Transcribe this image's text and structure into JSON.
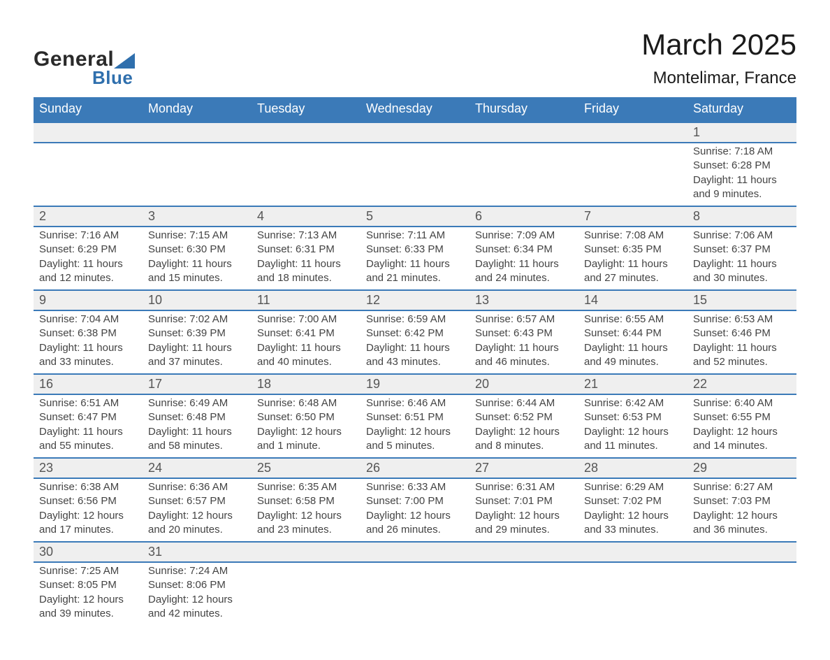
{
  "brand": {
    "word1": "General",
    "word2": "Blue",
    "accent_color": "#2f6fad"
  },
  "title": "March 2025",
  "location": "Montelimar, France",
  "header_bg": "#3b7ab8",
  "header_fg": "#ffffff",
  "daynum_bg": "#efefef",
  "row_border": "#3b7ab8",
  "text_color": "#444444",
  "day_headers": [
    "Sunday",
    "Monday",
    "Tuesday",
    "Wednesday",
    "Thursday",
    "Friday",
    "Saturday"
  ],
  "weeks": [
    [
      null,
      null,
      null,
      null,
      null,
      null,
      {
        "n": "1",
        "sunrise": "Sunrise: 7:18 AM",
        "sunset": "Sunset: 6:28 PM",
        "dl1": "Daylight: 11 hours",
        "dl2": "and 9 minutes."
      }
    ],
    [
      {
        "n": "2",
        "sunrise": "Sunrise: 7:16 AM",
        "sunset": "Sunset: 6:29 PM",
        "dl1": "Daylight: 11 hours",
        "dl2": "and 12 minutes."
      },
      {
        "n": "3",
        "sunrise": "Sunrise: 7:15 AM",
        "sunset": "Sunset: 6:30 PM",
        "dl1": "Daylight: 11 hours",
        "dl2": "and 15 minutes."
      },
      {
        "n": "4",
        "sunrise": "Sunrise: 7:13 AM",
        "sunset": "Sunset: 6:31 PM",
        "dl1": "Daylight: 11 hours",
        "dl2": "and 18 minutes."
      },
      {
        "n": "5",
        "sunrise": "Sunrise: 7:11 AM",
        "sunset": "Sunset: 6:33 PM",
        "dl1": "Daylight: 11 hours",
        "dl2": "and 21 minutes."
      },
      {
        "n": "6",
        "sunrise": "Sunrise: 7:09 AM",
        "sunset": "Sunset: 6:34 PM",
        "dl1": "Daylight: 11 hours",
        "dl2": "and 24 minutes."
      },
      {
        "n": "7",
        "sunrise": "Sunrise: 7:08 AM",
        "sunset": "Sunset: 6:35 PM",
        "dl1": "Daylight: 11 hours",
        "dl2": "and 27 minutes."
      },
      {
        "n": "8",
        "sunrise": "Sunrise: 7:06 AM",
        "sunset": "Sunset: 6:37 PM",
        "dl1": "Daylight: 11 hours",
        "dl2": "and 30 minutes."
      }
    ],
    [
      {
        "n": "9",
        "sunrise": "Sunrise: 7:04 AM",
        "sunset": "Sunset: 6:38 PM",
        "dl1": "Daylight: 11 hours",
        "dl2": "and 33 minutes."
      },
      {
        "n": "10",
        "sunrise": "Sunrise: 7:02 AM",
        "sunset": "Sunset: 6:39 PM",
        "dl1": "Daylight: 11 hours",
        "dl2": "and 37 minutes."
      },
      {
        "n": "11",
        "sunrise": "Sunrise: 7:00 AM",
        "sunset": "Sunset: 6:41 PM",
        "dl1": "Daylight: 11 hours",
        "dl2": "and 40 minutes."
      },
      {
        "n": "12",
        "sunrise": "Sunrise: 6:59 AM",
        "sunset": "Sunset: 6:42 PM",
        "dl1": "Daylight: 11 hours",
        "dl2": "and 43 minutes."
      },
      {
        "n": "13",
        "sunrise": "Sunrise: 6:57 AM",
        "sunset": "Sunset: 6:43 PM",
        "dl1": "Daylight: 11 hours",
        "dl2": "and 46 minutes."
      },
      {
        "n": "14",
        "sunrise": "Sunrise: 6:55 AM",
        "sunset": "Sunset: 6:44 PM",
        "dl1": "Daylight: 11 hours",
        "dl2": "and 49 minutes."
      },
      {
        "n": "15",
        "sunrise": "Sunrise: 6:53 AM",
        "sunset": "Sunset: 6:46 PM",
        "dl1": "Daylight: 11 hours",
        "dl2": "and 52 minutes."
      }
    ],
    [
      {
        "n": "16",
        "sunrise": "Sunrise: 6:51 AM",
        "sunset": "Sunset: 6:47 PM",
        "dl1": "Daylight: 11 hours",
        "dl2": "and 55 minutes."
      },
      {
        "n": "17",
        "sunrise": "Sunrise: 6:49 AM",
        "sunset": "Sunset: 6:48 PM",
        "dl1": "Daylight: 11 hours",
        "dl2": "and 58 minutes."
      },
      {
        "n": "18",
        "sunrise": "Sunrise: 6:48 AM",
        "sunset": "Sunset: 6:50 PM",
        "dl1": "Daylight: 12 hours",
        "dl2": "and 1 minute."
      },
      {
        "n": "19",
        "sunrise": "Sunrise: 6:46 AM",
        "sunset": "Sunset: 6:51 PM",
        "dl1": "Daylight: 12 hours",
        "dl2": "and 5 minutes."
      },
      {
        "n": "20",
        "sunrise": "Sunrise: 6:44 AM",
        "sunset": "Sunset: 6:52 PM",
        "dl1": "Daylight: 12 hours",
        "dl2": "and 8 minutes."
      },
      {
        "n": "21",
        "sunrise": "Sunrise: 6:42 AM",
        "sunset": "Sunset: 6:53 PM",
        "dl1": "Daylight: 12 hours",
        "dl2": "and 11 minutes."
      },
      {
        "n": "22",
        "sunrise": "Sunrise: 6:40 AM",
        "sunset": "Sunset: 6:55 PM",
        "dl1": "Daylight: 12 hours",
        "dl2": "and 14 minutes."
      }
    ],
    [
      {
        "n": "23",
        "sunrise": "Sunrise: 6:38 AM",
        "sunset": "Sunset: 6:56 PM",
        "dl1": "Daylight: 12 hours",
        "dl2": "and 17 minutes."
      },
      {
        "n": "24",
        "sunrise": "Sunrise: 6:36 AM",
        "sunset": "Sunset: 6:57 PM",
        "dl1": "Daylight: 12 hours",
        "dl2": "and 20 minutes."
      },
      {
        "n": "25",
        "sunrise": "Sunrise: 6:35 AM",
        "sunset": "Sunset: 6:58 PM",
        "dl1": "Daylight: 12 hours",
        "dl2": "and 23 minutes."
      },
      {
        "n": "26",
        "sunrise": "Sunrise: 6:33 AM",
        "sunset": "Sunset: 7:00 PM",
        "dl1": "Daylight: 12 hours",
        "dl2": "and 26 minutes."
      },
      {
        "n": "27",
        "sunrise": "Sunrise: 6:31 AM",
        "sunset": "Sunset: 7:01 PM",
        "dl1": "Daylight: 12 hours",
        "dl2": "and 29 minutes."
      },
      {
        "n": "28",
        "sunrise": "Sunrise: 6:29 AM",
        "sunset": "Sunset: 7:02 PM",
        "dl1": "Daylight: 12 hours",
        "dl2": "and 33 minutes."
      },
      {
        "n": "29",
        "sunrise": "Sunrise: 6:27 AM",
        "sunset": "Sunset: 7:03 PM",
        "dl1": "Daylight: 12 hours",
        "dl2": "and 36 minutes."
      }
    ],
    [
      {
        "n": "30",
        "sunrise": "Sunrise: 7:25 AM",
        "sunset": "Sunset: 8:05 PM",
        "dl1": "Daylight: 12 hours",
        "dl2": "and 39 minutes."
      },
      {
        "n": "31",
        "sunrise": "Sunrise: 7:24 AM",
        "sunset": "Sunset: 8:06 PM",
        "dl1": "Daylight: 12 hours",
        "dl2": "and 42 minutes."
      },
      null,
      null,
      null,
      null,
      null
    ]
  ]
}
